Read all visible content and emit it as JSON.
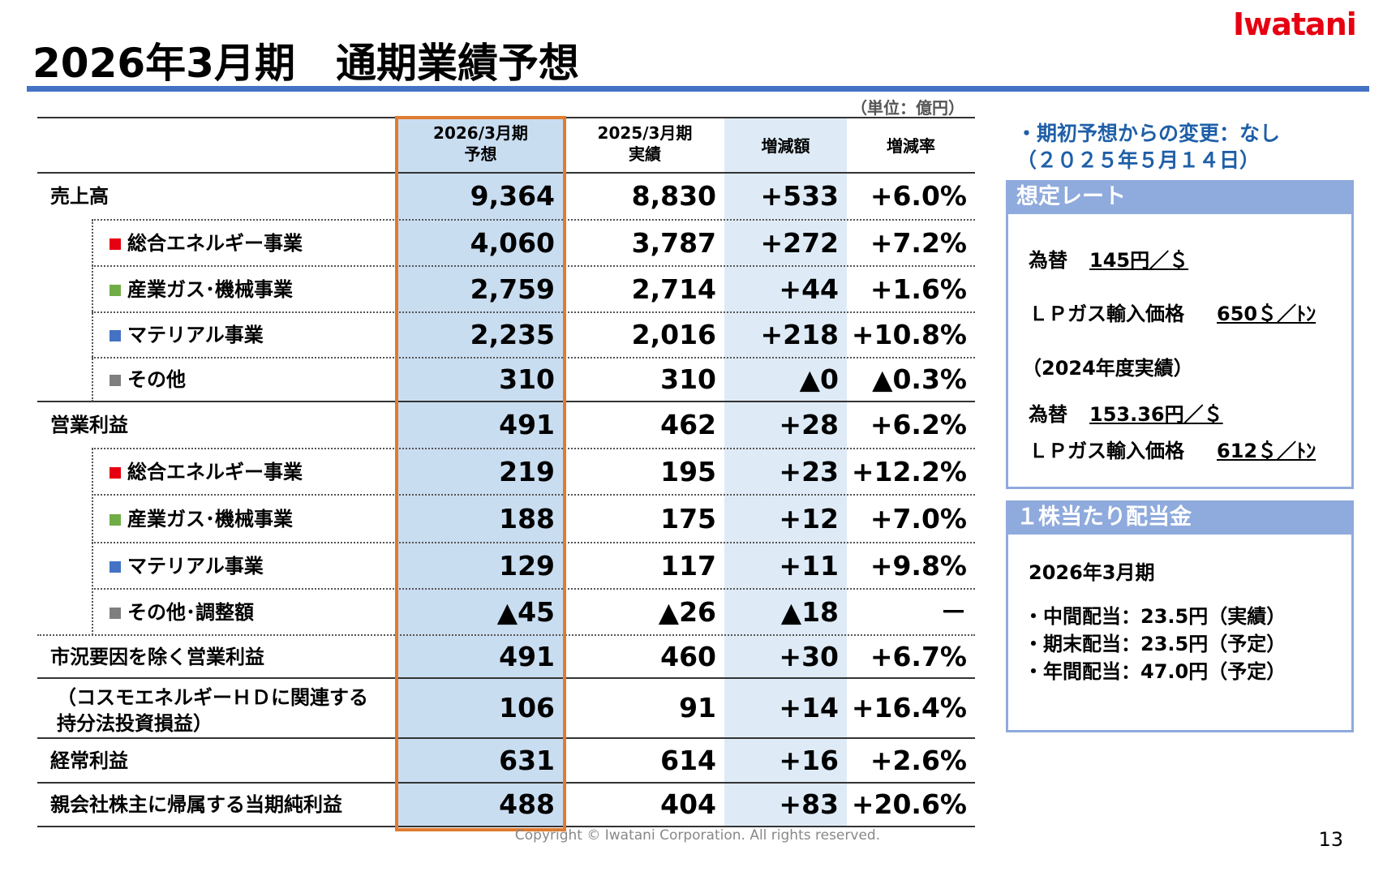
{
  "header": {
    "title": "2026年3月期　通期業績予想",
    "logo": "Iwatani"
  },
  "table": {
    "unit": "（単位：億円）",
    "columns": [
      "2026/3月期\n予想",
      "2025/3月期\n実績",
      "増減額",
      "増減率"
    ],
    "rows": [
      {
        "label": "売上高",
        "values": [
          "9,364",
          "8,830",
          "+533",
          "+6.0%"
        ]
      },
      {
        "label": "総合エネルギー事業",
        "marker": "#e60012",
        "values": [
          "4,060",
          "3,787",
          "+272",
          "+7.2%"
        ]
      },
      {
        "label": "産業ガス･機械事業",
        "marker": "#70ad47",
        "values": [
          "2,759",
          "2,714",
          "+44",
          "+1.6%"
        ]
      },
      {
        "label": "マテリアル事業",
        "marker": "#4472c4",
        "values": [
          "2,235",
          "2,016",
          "+218",
          "+10.8%"
        ]
      },
      {
        "label": "その他",
        "marker": "#7f7f7f",
        "values": [
          "310",
          "310",
          "▲0",
          "▲0.3%"
        ]
      },
      {
        "label": "営業利益",
        "values": [
          "491",
          "462",
          "+28",
          "+6.2%"
        ]
      },
      {
        "label": "総合エネルギー事業",
        "marker": "#e60012",
        "values": [
          "219",
          "195",
          "+23",
          "+12.2%"
        ]
      },
      {
        "label": "産業ガス･機械事業",
        "marker": "#70ad47",
        "values": [
          "188",
          "175",
          "+12",
          "+7.0%"
        ]
      },
      {
        "label": "マテリアル事業",
        "marker": "#4472c4",
        "values": [
          "129",
          "117",
          "+11",
          "+9.8%"
        ]
      },
      {
        "label": "その他･調整額",
        "marker": "#7f7f7f",
        "values": [
          "▲45",
          "▲26",
          "▲18",
          "－"
        ]
      },
      {
        "label": "市況要因を除く営業利益",
        "values": [
          "491",
          "460",
          "+30",
          "+6.7%"
        ]
      },
      {
        "label": "（コスモエネルギーＨＤに関連する\n持分法投資損益）",
        "values": [
          "106",
          "91",
          "+14",
          "+16.4%"
        ]
      },
      {
        "label": "経常利益",
        "values": [
          "631",
          "614",
          "+16",
          "+2.6%"
        ]
      },
      {
        "label": "親会社株主に帰属する当期純利益",
        "values": [
          "488",
          "404",
          "+83",
          "+20.6%"
        ]
      }
    ]
  },
  "side": {
    "note": "・期初予想からの変更：なし\n（２０２５年５月１４日）",
    "rates": {
      "title": "想定レート",
      "current": [
        {
          "label": "為替",
          "value": "145円／＄"
        },
        {
          "label": "ＬＰガス輸入価格",
          "value": "650＄／ﾄﾝ"
        }
      ],
      "previous_label": "（2024年度実績）",
      "previous": [
        {
          "label": "為替",
          "value": "153.36円／＄"
        },
        {
          "label": "ＬＰガス輸入価格",
          "value": "612＄／ﾄﾝ"
        }
      ]
    },
    "dividend": {
      "title": "１株当たり配当金",
      "period": "2026年3月期",
      "items": [
        "・中間配当：23.5円（実績）",
        "・期末配当：23.5円（予定）",
        "・年間配当：47.0円（予定）"
      ]
    }
  },
  "footer": {
    "copyright": "Copyright © Iwatani Corporation. All rights reserved.",
    "page": "13"
  }
}
